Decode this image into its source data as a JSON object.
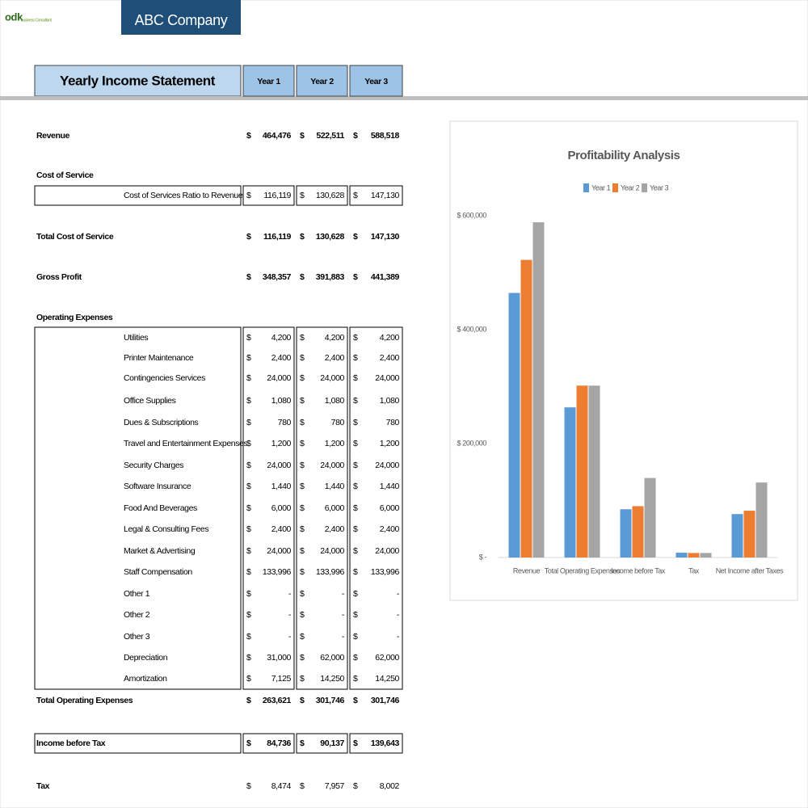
{
  "logo": {
    "mark": "odk",
    "text": "business Consultant"
  },
  "header": {
    "company": "ABC Company"
  },
  "table": {
    "title": "Yearly Income Statement",
    "columns": [
      "Year 1",
      "Year 2",
      "Year 3"
    ],
    "currency": "$",
    "rows": [
      {
        "label": "Revenue",
        "style": "total",
        "values": [
          "464,476",
          "522,511",
          "588,518"
        ]
      },
      {
        "label": "Cost of Service",
        "style": "section"
      },
      {
        "label": "Cost of Services Ratio to Revenue",
        "style": "boxed-item",
        "values": [
          "116,119",
          "130,628",
          "147,130"
        ]
      },
      {
        "label": "Total Cost of Service",
        "style": "total",
        "values": [
          "116,119",
          "130,628",
          "147,130"
        ]
      },
      {
        "label": "Gross Profit",
        "style": "total",
        "values": [
          "348,357",
          "391,883",
          "441,389"
        ]
      },
      {
        "label": "Operating Expenses",
        "style": "section"
      },
      {
        "label": "Utilities",
        "style": "item",
        "values": [
          "4,200",
          "4,200",
          "4,200"
        ]
      },
      {
        "label": "Printer Maintenance",
        "style": "item",
        "values": [
          "2,400",
          "2,400",
          "2,400"
        ]
      },
      {
        "label": "Contingencies Services",
        "style": "item",
        "values": [
          "24,000",
          "24,000",
          "24,000"
        ]
      },
      {
        "label": "Office Supplies",
        "style": "item",
        "values": [
          "1,080",
          "1,080",
          "1,080"
        ]
      },
      {
        "label": "Dues & Subscriptions",
        "style": "item",
        "values": [
          "780",
          "780",
          "780"
        ]
      },
      {
        "label": "Travel and Entertainment Expenses",
        "style": "item",
        "values": [
          "1,200",
          "1,200",
          "1,200"
        ]
      },
      {
        "label": "Security Charges",
        "style": "item",
        "values": [
          "24,000",
          "24,000",
          "24,000"
        ]
      },
      {
        "label": "Software Insurance",
        "style": "item",
        "values": [
          "1,440",
          "1,440",
          "1,440"
        ]
      },
      {
        "label": "Food And Beverages",
        "style": "item",
        "values": [
          "6,000",
          "6,000",
          "6,000"
        ]
      },
      {
        "label": "Legal & Consulting Fees",
        "style": "item",
        "values": [
          "2,400",
          "2,400",
          "2,400"
        ]
      },
      {
        "label": "Market & Advertising",
        "style": "item",
        "values": [
          "24,000",
          "24,000",
          "24,000"
        ]
      },
      {
        "label": "Staff Compensation",
        "style": "item",
        "values": [
          "133,996",
          "133,996",
          "133,996"
        ]
      },
      {
        "label": "Other 1",
        "style": "item",
        "values": [
          "-",
          "-",
          "-"
        ]
      },
      {
        "label": "Other 2",
        "style": "item",
        "values": [
          "-",
          "-",
          "-"
        ]
      },
      {
        "label": "Other 3",
        "style": "item",
        "values": [
          "-",
          "-",
          "-"
        ]
      },
      {
        "label": "Depreciation",
        "style": "item",
        "values": [
          "31,000",
          "62,000",
          "62,000"
        ]
      },
      {
        "label": "Amortization",
        "style": "item",
        "values": [
          "7,125",
          "14,250",
          "14,250"
        ]
      },
      {
        "label": "Total Operating Expenses",
        "style": "total",
        "values": [
          "263,621",
          "301,746",
          "301,746"
        ]
      },
      {
        "label": "Income before Tax",
        "style": "boxed-total",
        "values": [
          "84,736",
          "90,137",
          "139,643"
        ]
      },
      {
        "label": "Tax",
        "style": "plain",
        "values": [
          "8,474",
          "7,957",
          "8,002"
        ]
      }
    ]
  },
  "chart_data": {
    "type": "bar",
    "title": "Profitability Analysis",
    "categories": [
      "Revenue",
      "Total Operating Expenses",
      "Income before Tax",
      "Tax",
      "Net Income after Taxes"
    ],
    "series": [
      {
        "name": "Year 1",
        "color": "#5b9bd5",
        "values": [
          464476,
          263621,
          84736,
          8474,
          76262
        ]
      },
      {
        "name": "Year 2",
        "color": "#ed7d31",
        "values": [
          522511,
          301746,
          90137,
          7957,
          82180
        ]
      },
      {
        "name": "Year 3",
        "color": "#a5a5a5",
        "values": [
          588518,
          301746,
          139643,
          8002,
          131641
        ]
      }
    ],
    "ylim": [
      0,
      600000
    ],
    "yticks": [
      {
        "value": 0,
        "label": "$ -"
      },
      {
        "value": 200000,
        "label": "$ 200,000"
      },
      {
        "value": 400000,
        "label": "$ 400,000"
      },
      {
        "value": 600000,
        "label": "$ 600,000"
      }
    ],
    "grid": false,
    "legend": "top"
  }
}
